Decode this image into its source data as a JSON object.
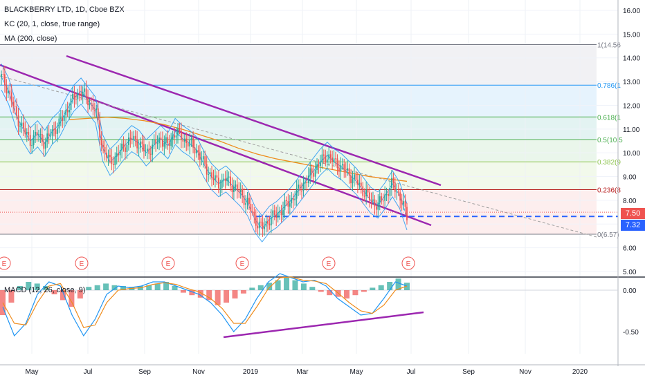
{
  "legend": {
    "title": "BLACKBERRY LTD, 1D, Cboe BZX",
    "kc": "KC (20, 1, close, true range)",
    "ma": "MA (200, close)",
    "macd": "MACD (12, 26, close, 9)"
  },
  "price_tags": [
    {
      "label": "7.50",
      "color": "#ef5350"
    },
    {
      "label": "7.32",
      "color": "#2962ff"
    }
  ],
  "earnings_marker": "E",
  "chart_data": [
    {
      "type": "line",
      "title": "BLACKBERRY LTD, 1D, Cboe BZX",
      "x_ticks": [
        "May",
        "Jul",
        "Sep",
        "Nov",
        "2019",
        "Mar",
        "May",
        "Jul",
        "Sep",
        "Nov",
        "2020"
      ],
      "y_ticks": [
        "16.00",
        "15.00",
        "14.00",
        "13.00",
        "12.00",
        "11.00",
        "10.00",
        "9.00",
        "8.00",
        "7.00",
        "6.00",
        "5.00"
      ],
      "ylim": [
        5.0,
        16.3
      ],
      "colors": {
        "candle_up": "#26a69a",
        "candle_down": "#ef5350",
        "kc": "#2196f3",
        "ma": "#ef8c1c",
        "trend": "#9c27b0",
        "support": "#2962ff"
      },
      "fibonacci": [
        {
          "label": "1(14.56",
          "level": 14.56,
          "color": "#787b86"
        },
        {
          "label": "0.786(1",
          "level": 12.85,
          "color": "#2196f3"
        },
        {
          "label": "0.618(1",
          "level": 11.51,
          "color": "#4caf50"
        },
        {
          "label": "0.5(10.5",
          "level": 10.56,
          "color": "#4caf50"
        },
        {
          "label": "0.382(9",
          "level": 9.62,
          "color": "#8bc34a"
        },
        {
          "label": "0.236(8",
          "level": 8.45,
          "color": "#b71c1c"
        },
        {
          "label": "0(6.57)",
          "level": 6.57,
          "color": "#787b86"
        }
      ],
      "price_series": [
        13.2,
        12.6,
        11.6,
        11.0,
        10.5,
        10.8,
        10.4,
        10.9,
        11.2,
        11.8,
        12.3,
        12.6,
        12.2,
        11.8,
        10.2,
        9.6,
        9.9,
        10.3,
        10.6,
        10.4,
        10.0,
        10.3,
        10.6,
        10.3,
        10.9,
        10.6,
        10.4,
        10.1,
        9.5,
        9.0,
        8.7,
        8.9,
        8.6,
        8.3,
        7.9,
        7.2,
        6.8,
        7.2,
        7.4,
        7.7,
        8.0,
        8.4,
        8.8,
        9.2,
        9.6,
        9.9,
        9.6,
        9.4,
        9.1,
        8.8,
        8.4,
        8.0,
        7.8,
        8.2,
        8.7,
        8.2,
        7.3
      ],
      "ma200": [
        11.4,
        11.45,
        11.5,
        11.45,
        11.35,
        11.2,
        11.0,
        10.75,
        10.5,
        10.2,
        9.95,
        9.75,
        9.6,
        9.45,
        9.3,
        9.15,
        9.0,
        8.9,
        8.8
      ],
      "trend_lines": [
        {
          "from": [
            "Apr 2018",
            14.2
          ],
          "to": [
            "Jul 2019",
            8.6
          ]
        },
        {
          "from": [
            "Mar 2018",
            13.7
          ],
          "to": [
            "Jul 2019",
            7.2
          ]
        }
      ],
      "support_level": 7.32
    },
    {
      "type": "bar",
      "title": "MACD (12, 26, close, 9)",
      "y_ticks": [
        "0.00",
        "-0.50"
      ],
      "ylim": [
        -0.8,
        0.2
      ],
      "histogram": [
        -0.3,
        -0.15,
        0.05,
        0.1,
        0.08,
        0.05,
        -0.05,
        -0.12,
        -0.2,
        -0.1,
        0.04,
        0.06,
        0.08,
        0.06,
        0.05,
        0.04,
        0.05,
        0.06,
        0.08,
        0.1,
        0.05,
        -0.03,
        -0.06,
        -0.09,
        -0.12,
        -0.18,
        -0.15,
        -0.1,
        -0.04,
        0.03,
        0.06,
        0.09,
        0.12,
        0.15,
        0.12,
        0.08,
        0.04,
        -0.02,
        -0.06,
        -0.08,
        -0.1,
        -0.06,
        -0.02,
        0.03,
        0.06,
        0.1,
        0.14,
        0.09
      ],
      "macd": [
        -0.2,
        -0.55,
        -0.4,
        -0.05,
        0.1,
        0.05,
        -0.3,
        -0.55,
        -0.35,
        -0.05,
        0.05,
        0.03,
        0.05,
        0.1,
        0.1,
        0.05,
        0.0,
        -0.05,
        -0.15,
        -0.3,
        -0.5,
        -0.35,
        -0.1,
        0.1,
        0.2,
        0.15,
        0.1,
        0.12,
        0.05,
        -0.1,
        -0.2,
        -0.3,
        -0.28,
        -0.1,
        0.1,
        0.05
      ],
      "signal": [
        -0.15,
        -0.4,
        -0.42,
        -0.15,
        0.05,
        0.08,
        -0.15,
        -0.45,
        -0.42,
        -0.15,
        0.0,
        0.02,
        0.03,
        0.07,
        0.09,
        0.07,
        0.02,
        -0.02,
        -0.1,
        -0.22,
        -0.4,
        -0.4,
        -0.2,
        0.02,
        0.15,
        0.16,
        0.12,
        0.11,
        0.08,
        -0.03,
        -0.15,
        -0.25,
        -0.28,
        -0.18,
        0.0,
        0.05
      ]
    }
  ]
}
